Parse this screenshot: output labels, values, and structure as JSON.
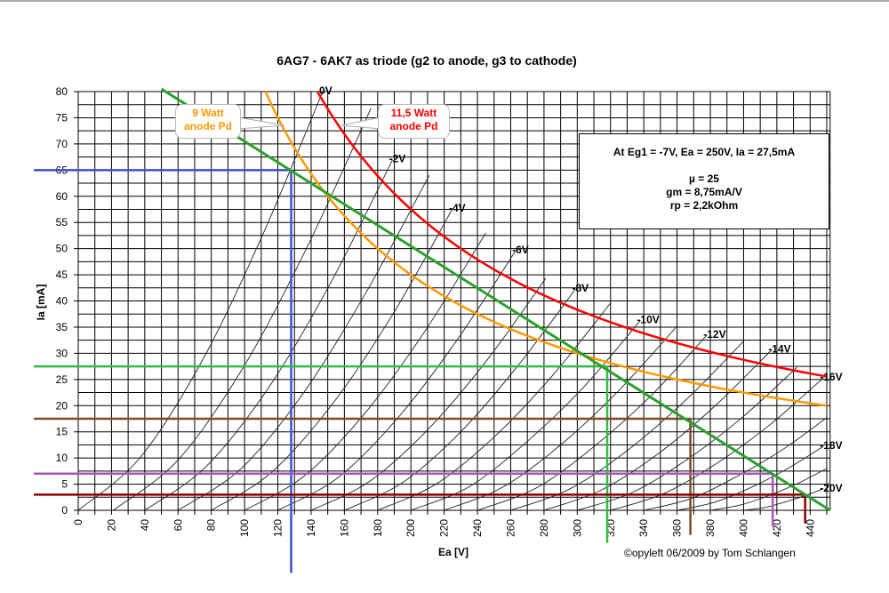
{
  "chart_data": {
    "type": "line",
    "title": "6AG7 - 6AK7  as triode (g2 to anode, g3 to cathode)",
    "xlabel": "Ea [V]",
    "ylabel": "Ia [mA]",
    "xlim": [
      0,
      450
    ],
    "ylim": [
      0,
      80
    ],
    "grid": true,
    "x_ticks": [
      "0",
      "20",
      "40",
      "60",
      "80",
      "100",
      "120",
      "140",
      "160",
      "180",
      "200",
      "220",
      "240",
      "260",
      "280",
      "300",
      "320",
      "340",
      "360",
      "380",
      "400",
      "420",
      "440"
    ],
    "y_ticks": [
      "0",
      "5",
      "10",
      "15",
      "20",
      "25",
      "30",
      "35",
      "40",
      "45",
      "50",
      "55",
      "60",
      "65",
      "70",
      "75",
      "80"
    ],
    "grid_curves": [
      {
        "eg": 0,
        "label": "0V",
        "points": [
          [
            0,
            0
          ],
          [
            37,
            10
          ],
          [
            74,
            28.3
          ],
          [
            110,
            52
          ],
          [
            147,
            80
          ]
        ]
      },
      {
        "eg": -1,
        "label": "",
        "points": [
          [
            21,
            0
          ],
          [
            60,
            9.6
          ],
          [
            99,
            27.2
          ],
          [
            137,
            49.9
          ],
          [
            176,
            76.8
          ]
        ]
      },
      {
        "eg": -2,
        "label": "-2V",
        "points": [
          [
            40,
            0
          ],
          [
            77,
            8.4
          ],
          [
            115,
            23.7
          ],
          [
            152,
            43.6
          ],
          [
            189,
            67
          ]
        ]
      },
      {
        "eg": -3,
        "label": "",
        "points": [
          [
            60,
            0
          ],
          [
            98,
            8
          ],
          [
            136,
            22.7
          ],
          [
            173,
            41.6
          ],
          [
            211,
            64
          ]
        ]
      },
      {
        "eg": -4,
        "label": "-4V",
        "points": [
          [
            80,
            0
          ],
          [
            116,
            7.2
          ],
          [
            153,
            20.4
          ],
          [
            189,
            37.4
          ],
          [
            225,
            57.6
          ]
        ]
      },
      {
        "eg": -5,
        "label": "",
        "points": [
          [
            100,
            0
          ],
          [
            136,
            6.6
          ],
          [
            173,
            18.8
          ],
          [
            209,
            34.5
          ],
          [
            245,
            53
          ]
        ]
      },
      {
        "eg": -6,
        "label": "-6V",
        "points": [
          [
            120,
            0
          ],
          [
            156,
            6.2
          ],
          [
            192,
            17.6
          ],
          [
            227,
            32.2
          ],
          [
            263,
            49.6
          ]
        ]
      },
      {
        "eg": -7,
        "label": "",
        "points": [
          [
            140,
            0
          ],
          [
            175,
            5.5
          ],
          [
            211,
            15.7
          ],
          [
            246,
            28.8
          ],
          [
            281,
            44.3
          ]
        ]
      },
      {
        "eg": -8,
        "label": "-8V",
        "points": [
          [
            160,
            0
          ],
          [
            195,
            5.3
          ],
          [
            230,
            15
          ],
          [
            264,
            27.5
          ],
          [
            299,
            42.3
          ]
        ]
      },
      {
        "eg": -9,
        "label": "",
        "points": [
          [
            180,
            0
          ],
          [
            215,
            5
          ],
          [
            250,
            14
          ],
          [
            285,
            25.7
          ],
          [
            320,
            39.6
          ]
        ]
      },
      {
        "eg": -10,
        "label": "-10V",
        "points": [
          [
            200,
            0
          ],
          [
            235,
            4.5
          ],
          [
            269,
            12.9
          ],
          [
            304,
            23.6
          ],
          [
            338,
            36.3
          ]
        ]
      },
      {
        "eg": -11,
        "label": "",
        "points": [
          [
            220,
            0
          ],
          [
            255,
            4.4
          ],
          [
            290,
            12.5
          ],
          [
            325,
            22.9
          ],
          [
            360,
            35.2
          ]
        ]
      },
      {
        "eg": -12,
        "label": "-12V",
        "points": [
          [
            240,
            0
          ],
          [
            275,
            4.2
          ],
          [
            309,
            11.9
          ],
          [
            344,
            21.8
          ],
          [
            378,
            33.5
          ]
        ]
      },
      {
        "eg": -13,
        "label": "",
        "points": [
          [
            260,
            0
          ],
          [
            295,
            4
          ],
          [
            330,
            11.4
          ],
          [
            365,
            21
          ],
          [
            400,
            32.3
          ]
        ]
      },
      {
        "eg": -14,
        "label": "-14V",
        "points": [
          [
            280,
            0
          ],
          [
            314,
            3.8
          ],
          [
            349,
            10.9
          ],
          [
            383,
            20
          ],
          [
            417,
            30.7
          ]
        ]
      },
      {
        "eg": -15,
        "label": "",
        "points": [
          [
            300,
            0
          ],
          [
            333,
            3.4
          ],
          [
            366,
            9.7
          ],
          [
            399,
            17.7
          ],
          [
            432,
            27.3
          ]
        ]
      },
      {
        "eg": -16,
        "label": "-16V",
        "points": [
          [
            320,
            0
          ],
          [
            352,
            3.2
          ],
          [
            384,
            9
          ],
          [
            416,
            16.4
          ],
          [
            448,
            25.3
          ]
        ]
      },
      {
        "eg": -17,
        "label": "",
        "points": [
          [
            340,
            0
          ],
          [
            368,
            2.2
          ],
          [
            395,
            6.3
          ],
          [
            423,
            11.5
          ],
          [
            450,
            17.7
          ]
        ]
      },
      {
        "eg": -18,
        "label": "-18V",
        "points": [
          [
            360,
            0
          ],
          [
            382,
            1.5
          ],
          [
            404,
            4.3
          ],
          [
            426,
            7.9
          ],
          [
            448,
            12.2
          ]
        ]
      },
      {
        "eg": -19,
        "label": "",
        "points": [
          [
            380,
            0
          ],
          [
            398,
            1
          ],
          [
            415,
            2.8
          ],
          [
            433,
            5.2
          ],
          [
            450,
            8
          ]
        ]
      },
      {
        "eg": -20,
        "label": "-20V",
        "points": [
          [
            400,
            0
          ],
          [
            412,
            0.5
          ],
          [
            424,
            1.5
          ],
          [
            436,
            2.7
          ],
          [
            448,
            4.1
          ]
        ]
      }
    ],
    "power_curves": [
      {
        "watts": 9,
        "label_line1": "9 Watt",
        "label_line2": "anode Pd",
        "color": "#ff9900",
        "ea_range": [
          112.5,
          450
        ]
      },
      {
        "watts": 11.5,
        "label_line1": "11,5 Watt",
        "label_line2": "anode Pd",
        "color": "#ff0000",
        "ea_range": [
          143.75,
          450
        ]
      }
    ],
    "load_line": {
      "color": "#2ca02c",
      "points": [
        [
          50,
          80.5
        ],
        [
          452,
          0
        ]
      ]
    },
    "operating_markers": [
      {
        "ea": 128,
        "ia": 65,
        "color": "#3a4fd0"
      },
      {
        "ea": 318,
        "ia": 27.5,
        "color": "#33bb44"
      },
      {
        "ea": 368,
        "ia": 17.5,
        "color": "#7a4a2a"
      },
      {
        "ea": 417.5,
        "ia": 7,
        "color": "#aa55bb"
      },
      {
        "ea": 437,
        "ia": 3,
        "color": "#8b0000"
      }
    ],
    "info_box": {
      "line1": "At Eg1 = -7V, Ea = 250V, Ia = 27,5mA",
      "line2": "µ = 25",
      "line3": "gm = 8,75mA/V",
      "line4": "rp = 2,2kOhm"
    },
    "credit": "©opyleft 06/2009 by Tom Schlangen"
  }
}
